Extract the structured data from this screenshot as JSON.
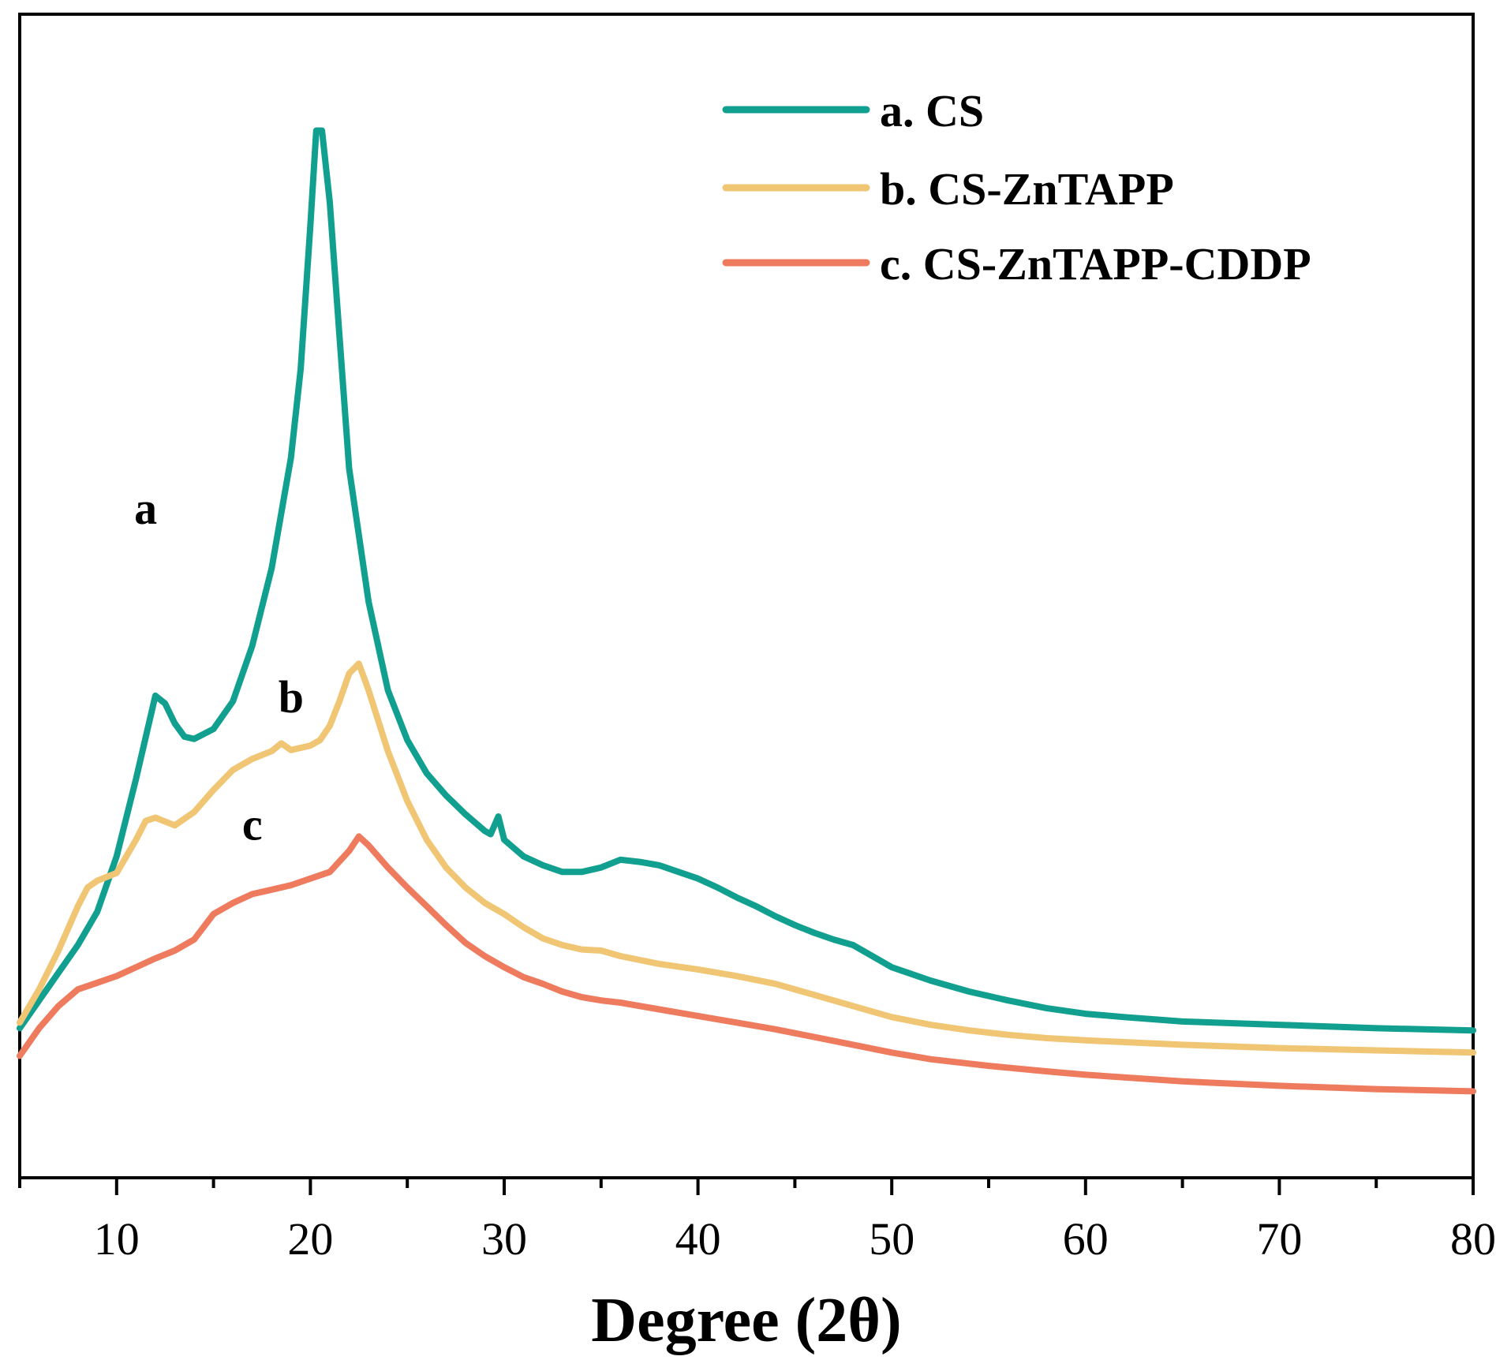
{
  "chart_data": {
    "type": "line",
    "title": "",
    "xlabel": "Degree (2θ)",
    "ylabel": "",
    "xlim": [
      5,
      80
    ],
    "ylim": [
      0,
      1050
    ],
    "xticks": [
      10,
      20,
      30,
      40,
      50,
      60,
      70,
      80
    ],
    "xtick_labels": [
      "10",
      "20",
      "30",
      "40",
      "50",
      "60",
      "70",
      "80"
    ],
    "y_ticks_shown": false,
    "grid": false,
    "legend_position": "top-right",
    "series": [
      {
        "name": "a. CS",
        "letter": "a",
        "color": "#119f8f",
        "points": [
          [
            5,
            135
          ],
          [
            7,
            185
          ],
          [
            8,
            210
          ],
          [
            9,
            240
          ],
          [
            10,
            290
          ],
          [
            11,
            360
          ],
          [
            12,
            435
          ],
          [
            12.5,
            428
          ],
          [
            13,
            410
          ],
          [
            13.5,
            398
          ],
          [
            14,
            396
          ],
          [
            15,
            405
          ],
          [
            16,
            430
          ],
          [
            17,
            480
          ],
          [
            18,
            550
          ],
          [
            19,
            650
          ],
          [
            19.5,
            730
          ],
          [
            20,
            860
          ],
          [
            20.3,
            945
          ],
          [
            20.6,
            945
          ],
          [
            21,
            880
          ],
          [
            21.5,
            760
          ],
          [
            22,
            640
          ],
          [
            23,
            520
          ],
          [
            24,
            440
          ],
          [
            25,
            395
          ],
          [
            26,
            365
          ],
          [
            27,
            345
          ],
          [
            28,
            328
          ],
          [
            29,
            313
          ],
          [
            29.3,
            310
          ],
          [
            29.7,
            326
          ],
          [
            30,
            305
          ],
          [
            31,
            290
          ],
          [
            32,
            282
          ],
          [
            33,
            276
          ],
          [
            34,
            276
          ],
          [
            35,
            280
          ],
          [
            36,
            287
          ],
          [
            37,
            285
          ],
          [
            38,
            282
          ],
          [
            39,
            276
          ],
          [
            40,
            270
          ],
          [
            41,
            262
          ],
          [
            42,
            253
          ],
          [
            43,
            245
          ],
          [
            44,
            236
          ],
          [
            45,
            228
          ],
          [
            46,
            221
          ],
          [
            47,
            215
          ],
          [
            48,
            210
          ],
          [
            49,
            200
          ],
          [
            50,
            190
          ],
          [
            52,
            178
          ],
          [
            54,
            168
          ],
          [
            56,
            160
          ],
          [
            58,
            153
          ],
          [
            60,
            148
          ],
          [
            62,
            145
          ],
          [
            65,
            141
          ],
          [
            70,
            138
          ],
          [
            75,
            135
          ],
          [
            80,
            133
          ]
        ]
      },
      {
        "name": "b. CS-ZnTAPP",
        "letter": "b",
        "color": "#f0c674",
        "points": [
          [
            5,
            140
          ],
          [
            6,
            170
          ],
          [
            7,
            205
          ],
          [
            8,
            245
          ],
          [
            8.5,
            262
          ],
          [
            9,
            268
          ],
          [
            10,
            275
          ],
          [
            11,
            305
          ],
          [
            11.5,
            322
          ],
          [
            12,
            325
          ],
          [
            13,
            318
          ],
          [
            14,
            330
          ],
          [
            15,
            350
          ],
          [
            16,
            368
          ],
          [
            17,
            378
          ],
          [
            18,
            385
          ],
          [
            18.5,
            392
          ],
          [
            19,
            386
          ],
          [
            20,
            390
          ],
          [
            20.5,
            395
          ],
          [
            21,
            408
          ],
          [
            21.5,
            430
          ],
          [
            22,
            455
          ],
          [
            22.5,
            464
          ],
          [
            23,
            440
          ],
          [
            24,
            385
          ],
          [
            25,
            340
          ],
          [
            26,
            305
          ],
          [
            27,
            280
          ],
          [
            28,
            262
          ],
          [
            29,
            248
          ],
          [
            30,
            238
          ],
          [
            31,
            226
          ],
          [
            32,
            216
          ],
          [
            33,
            210
          ],
          [
            34,
            206
          ],
          [
            35,
            205
          ],
          [
            36,
            200
          ],
          [
            38,
            193
          ],
          [
            40,
            188
          ],
          [
            42,
            182
          ],
          [
            44,
            175
          ],
          [
            46,
            165
          ],
          [
            48,
            155
          ],
          [
            50,
            145
          ],
          [
            52,
            138
          ],
          [
            54,
            133
          ],
          [
            56,
            129
          ],
          [
            58,
            126
          ],
          [
            60,
            124
          ],
          [
            65,
            120
          ],
          [
            70,
            117
          ],
          [
            75,
            115
          ],
          [
            80,
            113
          ]
        ]
      },
      {
        "name": "c. CS-ZnTAPP-CDDP",
        "letter": "c",
        "color": "#ef7b5f",
        "points": [
          [
            5,
            110
          ],
          [
            6,
            135
          ],
          [
            7,
            155
          ],
          [
            8,
            170
          ],
          [
            9,
            176
          ],
          [
            10,
            182
          ],
          [
            11,
            190
          ],
          [
            12,
            198
          ],
          [
            13,
            205
          ],
          [
            14,
            215
          ],
          [
            15,
            238
          ],
          [
            16,
            248
          ],
          [
            17,
            256
          ],
          [
            18,
            260
          ],
          [
            19,
            264
          ],
          [
            20,
            270
          ],
          [
            21,
            276
          ],
          [
            22,
            295
          ],
          [
            22.5,
            308
          ],
          [
            23,
            300
          ],
          [
            24,
            280
          ],
          [
            25,
            262
          ],
          [
            26,
            245
          ],
          [
            27,
            228
          ],
          [
            28,
            212
          ],
          [
            29,
            200
          ],
          [
            30,
            190
          ],
          [
            31,
            181
          ],
          [
            32,
            175
          ],
          [
            33,
            168
          ],
          [
            34,
            163
          ],
          [
            35,
            160
          ],
          [
            36,
            158
          ],
          [
            38,
            152
          ],
          [
            40,
            146
          ],
          [
            42,
            140
          ],
          [
            44,
            134
          ],
          [
            46,
            127
          ],
          [
            48,
            120
          ],
          [
            50,
            113
          ],
          [
            52,
            107
          ],
          [
            55,
            101
          ],
          [
            58,
            96
          ],
          [
            60,
            93
          ],
          [
            65,
            87
          ],
          [
            70,
            83
          ],
          [
            75,
            80
          ],
          [
            80,
            78
          ]
        ]
      }
    ],
    "annotations": [
      {
        "text": "a",
        "x": 11.5,
        "y": 590
      },
      {
        "text": "b",
        "x": 19.0,
        "y": 420
      },
      {
        "text": "c",
        "x": 17.0,
        "y": 305
      }
    ]
  }
}
